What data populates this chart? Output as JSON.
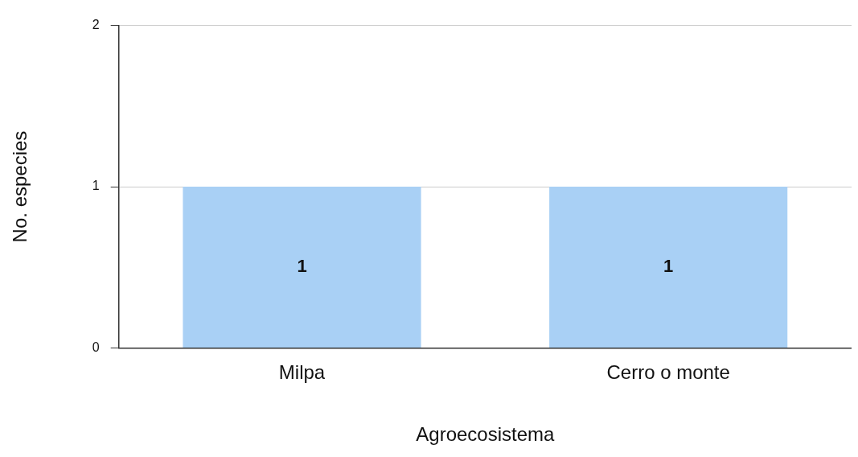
{
  "chart_data": {
    "type": "bar",
    "xlabel": "Agroecosistema",
    "ylabel": "No. especies",
    "categories": [
      "Milpa",
      "Cerro o monte"
    ],
    "values": [
      1,
      1
    ],
    "color": "#a9d0f5",
    "ylim": [
      0,
      2
    ],
    "yticks": [
      0,
      1,
      2
    ],
    "grid": "y",
    "legend": false,
    "data_labels": true
  }
}
